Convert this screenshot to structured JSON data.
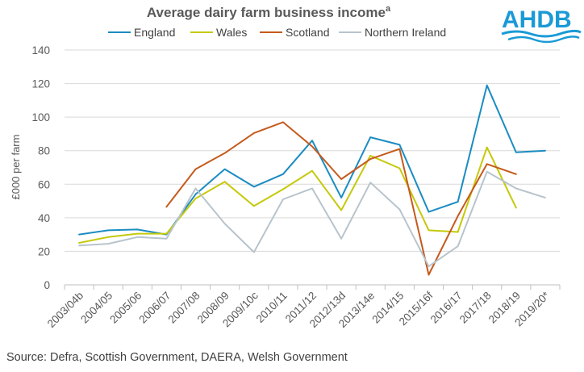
{
  "logo": {
    "text": "AHDB",
    "color": "#1a9ad6"
  },
  "source": "Source: Defra, Scottish Government,  DAERA, Welsh Government",
  "chart_data": {
    "type": "line",
    "title": "Average dairy farm business income",
    "title_superscript": "a",
    "xlabel": "",
    "ylabel": "£000 per farm",
    "ylim": [
      0,
      140
    ],
    "yticks": [
      0,
      20,
      40,
      60,
      80,
      100,
      120,
      140
    ],
    "grid": "horizontal",
    "legend": "top",
    "categories": [
      "2003/04b",
      "2004/05",
      "2005/06",
      "2006/07",
      "2007/08",
      "2008/09",
      "2009/10c",
      "2010/11",
      "2011/12",
      "2012/13d",
      "2013/14e",
      "2014/15",
      "2015/16f",
      "2016/17",
      "2017/18",
      "2018/19",
      "2019/20*"
    ],
    "series": [
      {
        "name": "England",
        "color": "#1b8cc2",
        "values": [
          30,
          32.5,
          33,
          30,
          54,
          69,
          58.5,
          66,
          86,
          52,
          88,
          83.5,
          43.5,
          49.5,
          119,
          79,
          80
        ]
      },
      {
        "name": "Wales",
        "color": "#c5c90a",
        "values": [
          25,
          28.5,
          30.5,
          30.5,
          51.5,
          61.5,
          47,
          57,
          68,
          44.5,
          77,
          69.5,
          32.5,
          31.5,
          82,
          46,
          null
        ]
      },
      {
        "name": "Scotland",
        "color": "#c55a1c",
        "values": [
          null,
          null,
          null,
          46.5,
          69,
          78.5,
          90.5,
          97,
          82.5,
          63,
          75,
          81,
          6,
          41,
          72,
          66,
          null
        ]
      },
      {
        "name": "Northern Ireland",
        "color": "#b8c4cc",
        "values": [
          23.5,
          24.5,
          28.5,
          27.5,
          57.5,
          36.5,
          19.5,
          51,
          57.5,
          27.5,
          61,
          45,
          11,
          23,
          67.5,
          57.5,
          52
        ]
      }
    ]
  }
}
